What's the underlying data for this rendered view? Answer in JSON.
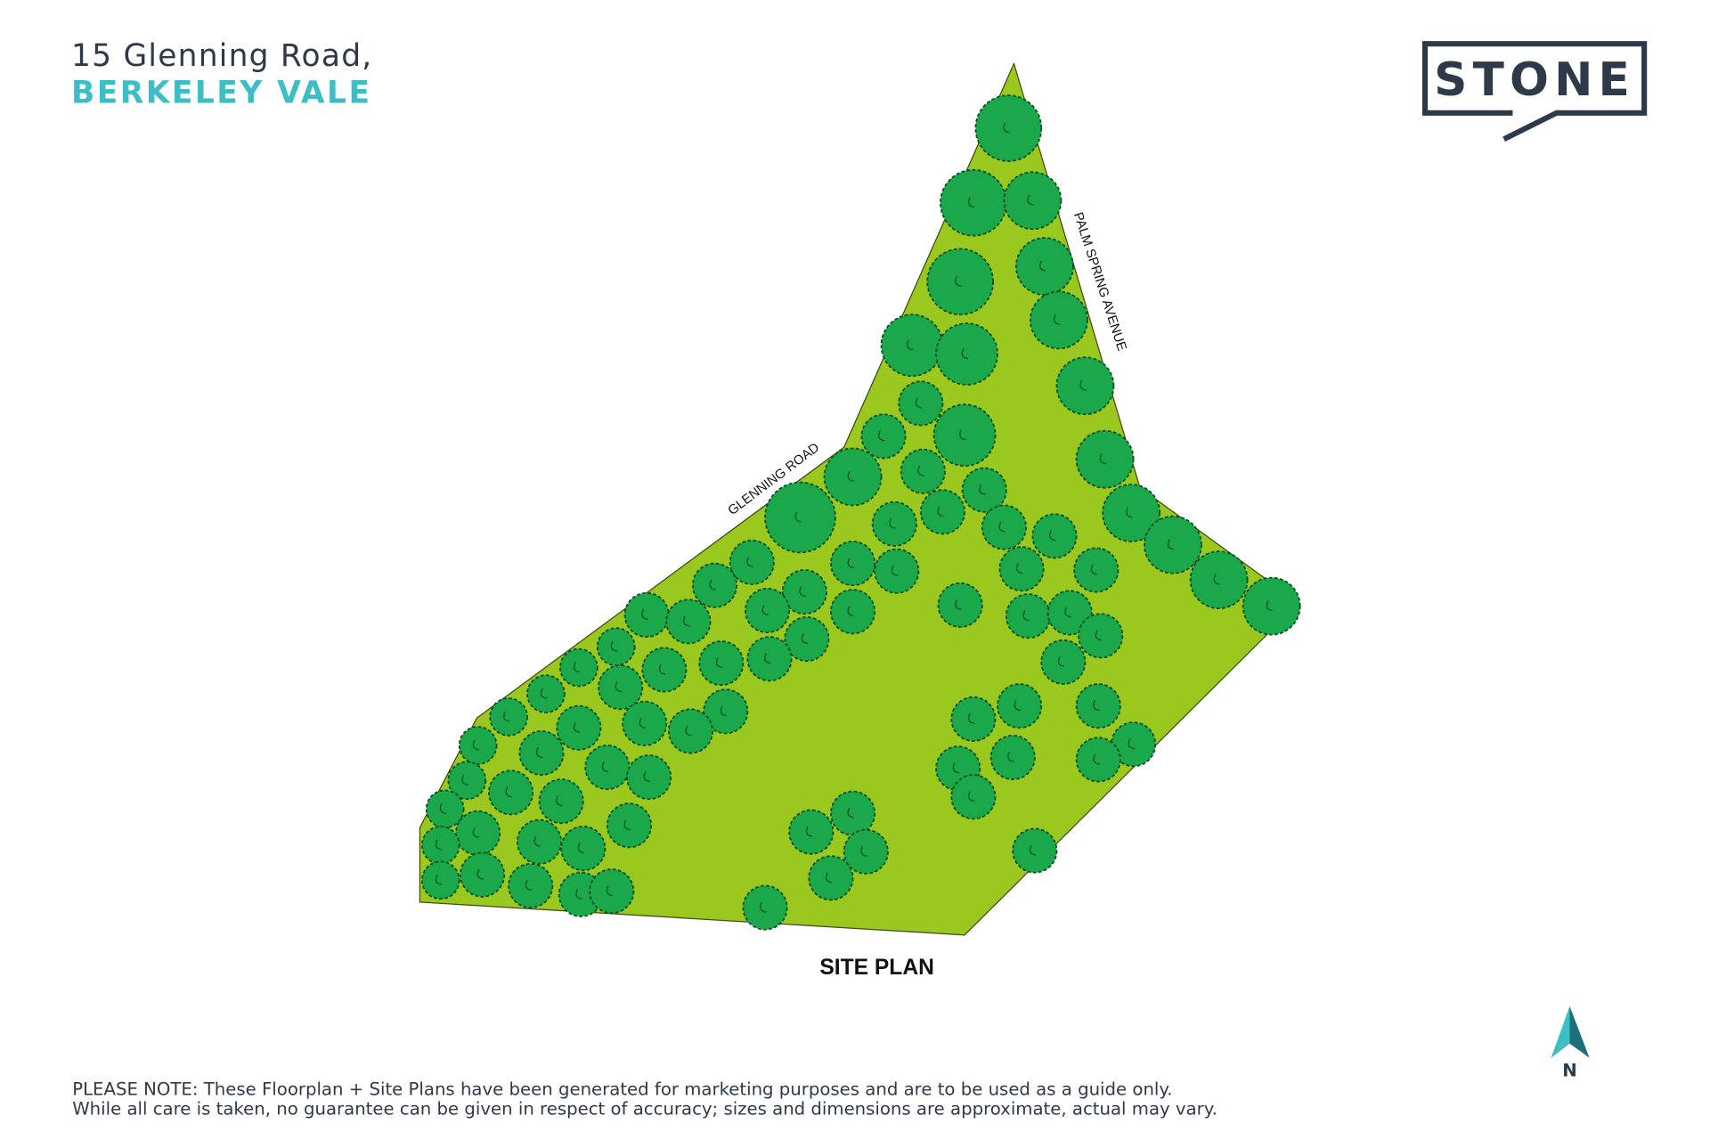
{
  "header": {
    "address": "15 Glenning Road,",
    "suburb": "BERKELEY VALE"
  },
  "logo": "STONE",
  "plan": {
    "roads": [
      "GLENNING ROAD",
      "PALM SPRING AVENUE"
    ],
    "caption": "SITE PLAN"
  },
  "compass": "N",
  "note": [
    "PLEASE NOTE: These Floorplan + Site Plans have been generated for marketing purposes and are to be used as a guide only.",
    "While all care is taken, no guarantee can be given in respect of accuracy; sizes and dimensions are approximate, actual may vary."
  ]
}
